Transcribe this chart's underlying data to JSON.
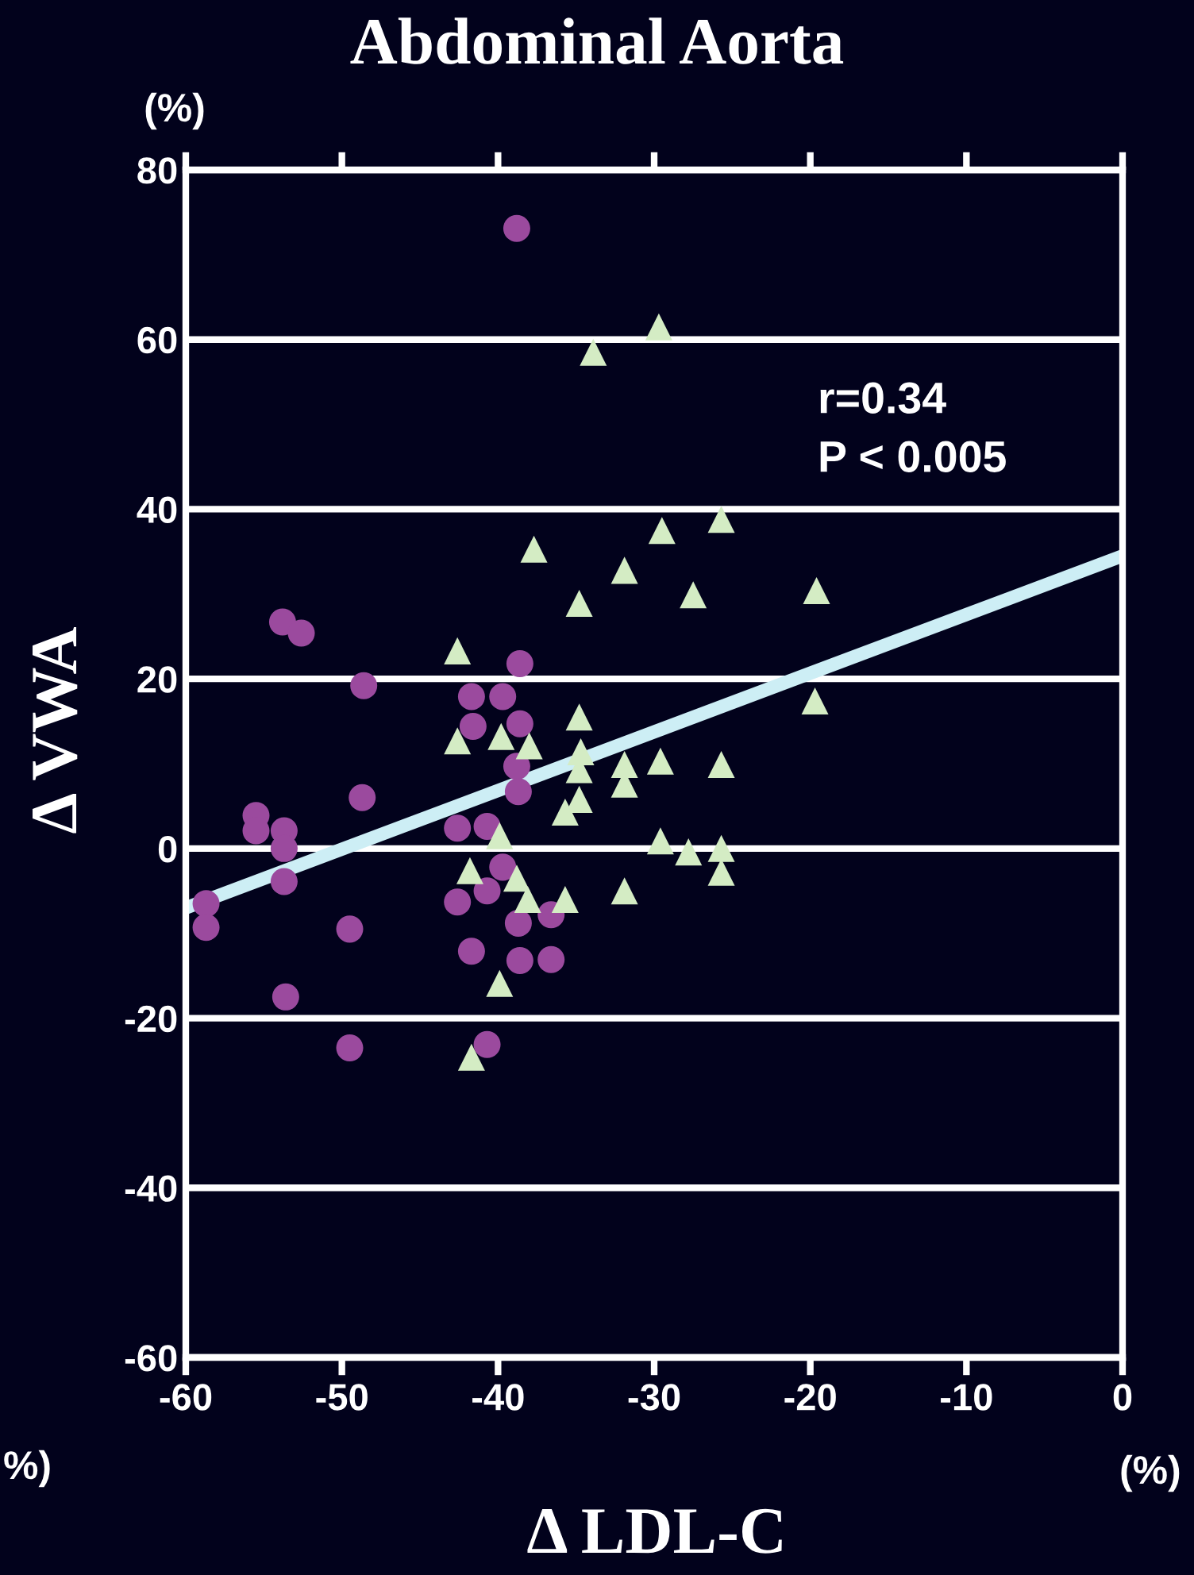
{
  "chart_data": {
    "type": "scatter",
    "title": "Abdominal Aorta",
    "xlabel": "Δ LDL-C",
    "ylabel": "Δ VWA",
    "xlim": [
      -60,
      0
    ],
    "ylim": [
      -60,
      80
    ],
    "xticks": [
      -60,
      -50,
      -40,
      -30,
      -20,
      -10,
      0
    ],
    "yticks": [
      -60,
      -40,
      -20,
      0,
      20,
      40,
      60,
      80
    ],
    "grid": "y",
    "legend": false,
    "annotations": [
      "r=0.34",
      "P < 0.005",
      "(%)",
      "%)",
      "(%)"
    ],
    "series": [
      {
        "marker": "circle",
        "color": "#9b4a9e",
        "x": [
          -38.8,
          -53.8,
          -52.6,
          -38.6,
          -48.6,
          -41.7,
          -39.7,
          -41.6,
          -38.6,
          -38.8,
          -38.7,
          -48.7,
          -55.5,
          -55.5,
          -53.7,
          -53.7,
          -53.7,
          -42.6,
          -40.7,
          -39.7,
          -40.7,
          -42.6,
          -38.7,
          -36.6,
          -58.7,
          -58.7,
          -49.5,
          -41.7,
          -38.6,
          -36.6,
          -53.6,
          -49.5,
          -40.7
        ],
        "values": [
          73.1,
          26.7,
          25.4,
          21.8,
          19.2,
          17.9,
          17.9,
          14.4,
          14.7,
          9.7,
          6.7,
          6.0,
          3.9,
          2.1,
          2.1,
          0.0,
          -3.9,
          2.4,
          2.6,
          -2.2,
          -5.0,
          -6.3,
          -8.8,
          -7.8,
          -6.5,
          -9.3,
          -9.5,
          -12.1,
          -13.2,
          -13.1,
          -17.5,
          -23.5,
          -23.1
        ]
      },
      {
        "marker": "triangle",
        "color": "#d4ecc4",
        "x": [
          -29.7,
          -33.9,
          -37.7,
          -29.5,
          -25.7,
          -31.9,
          -27.5,
          -34.8,
          -19.6,
          -42.6,
          -34.8,
          -19.7,
          -42.6,
          -39.8,
          -38.0,
          -34.7,
          -34.8,
          -34.8,
          -31.9,
          -31.9,
          -29.6,
          -25.7,
          -35.7,
          -39.9,
          -29.6,
          -27.8,
          -25.7,
          -25.7,
          -41.8,
          -38.8,
          -38.1,
          -35.7,
          -31.9,
          -39.9,
          -41.7
        ],
        "values": [
          61.5,
          58.5,
          35.3,
          37.5,
          38.8,
          32.8,
          29.9,
          28.9,
          30.4,
          23.3,
          15.5,
          17.4,
          12.7,
          13.2,
          12.1,
          11.4,
          9.3,
          5.8,
          9.9,
          7.6,
          10.3,
          9.9,
          4.3,
          1.5,
          0.9,
          -0.4,
          0.0,
          -2.8,
          -2.6,
          -3.5,
          -6.0,
          -6.0,
          -5.0,
          -15.9,
          -24.6
        ]
      },
      {
        "type": "line",
        "color": "#cdeef5",
        "x": [
          -60,
          0
        ],
        "values": [
          -7,
          34.5
        ]
      }
    ]
  }
}
